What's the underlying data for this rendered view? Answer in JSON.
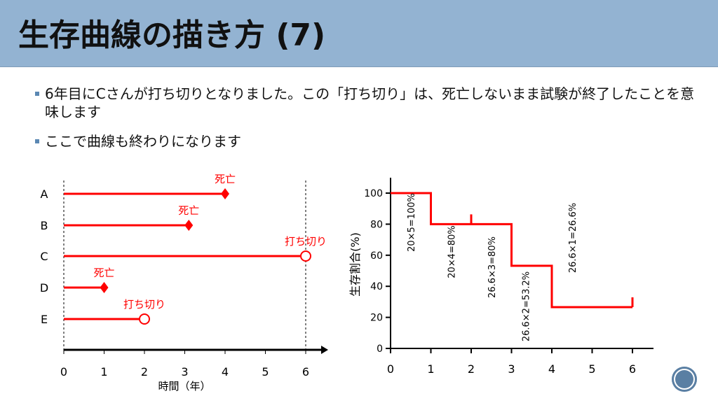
{
  "title": "生存曲線の描き方 (7)",
  "bullets": [
    "6年目にCさんが打ち切りとなりました。この「打ち切り」は、死亡しないまま試験が終了したことを意味します",
    "ここで曲線も終わりになります"
  ],
  "chart_data": [
    {
      "type": "scatter",
      "title": "",
      "xlabel": "時間（年）",
      "ylabel": "",
      "xlim": [
        0,
        6.5
      ],
      "x_ticks": [
        "0",
        "1",
        "2",
        "3",
        "4",
        "5",
        "6"
      ],
      "subjects": [
        {
          "name": "A",
          "end": 4,
          "event": "死亡"
        },
        {
          "name": "B",
          "end": 3.1,
          "event": "死亡"
        },
        {
          "name": "C",
          "end": 6,
          "event": "打ち切り"
        },
        {
          "name": "D",
          "end": 1,
          "event": "死亡"
        },
        {
          "name": "E",
          "end": 2,
          "event": "打ち切り"
        }
      ],
      "reference_lines_x": [
        0,
        6
      ]
    },
    {
      "type": "line",
      "title": "",
      "xlabel": "",
      "ylabel": "生存割合(%)",
      "xlim": [
        0,
        6.5
      ],
      "ylim": [
        0,
        110
      ],
      "x_ticks": [
        "0",
        "1",
        "2",
        "3",
        "4",
        "5",
        "6"
      ],
      "y_ticks": [
        "0",
        "20",
        "40",
        "60",
        "80",
        "100"
      ],
      "steps": [
        {
          "x0": 0,
          "x1": 1,
          "y": 100
        },
        {
          "x0": 1,
          "x1": 3,
          "y": 80
        },
        {
          "x0": 3,
          "x1": 4,
          "y": 53.2
        },
        {
          "x0": 4,
          "x1": 6,
          "y": 26.6
        }
      ],
      "censor_marks": [
        {
          "x": 2,
          "y": 80
        },
        {
          "x": 6,
          "y": 26.6
        }
      ],
      "annotations": [
        {
          "x": 0.5,
          "text": "20×5=100%"
        },
        {
          "x": 1.5,
          "text": "20×4=80%"
        },
        {
          "x": 2.5,
          "text": "26.6×3=80%"
        },
        {
          "x": 3.35,
          "text": "26.6×2=53.2%"
        },
        {
          "x": 4.5,
          "text": "26.6×1=26.6%"
        }
      ]
    }
  ],
  "colors": {
    "accent": "#ff0000",
    "header": "#93b3d2"
  }
}
